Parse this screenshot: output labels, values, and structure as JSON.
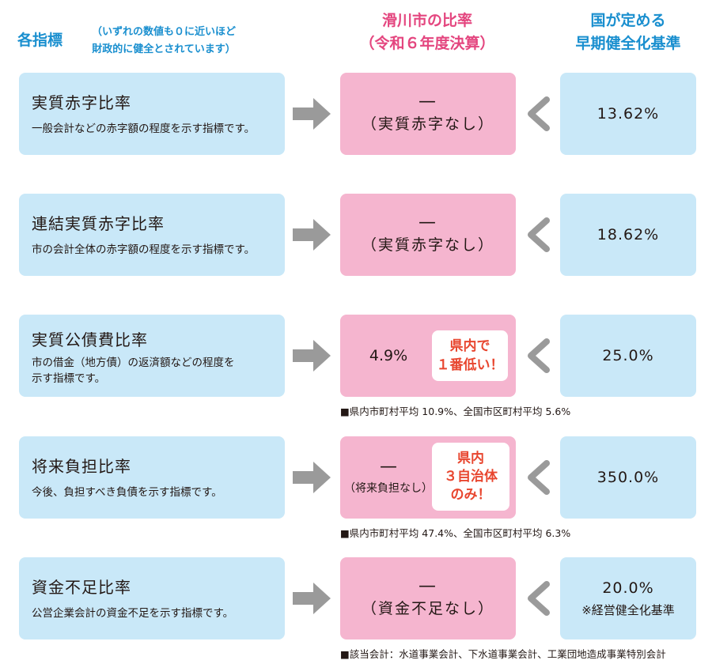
{
  "header": {
    "indicators_title": "各指標",
    "indicators_note": "（いずれの数値も０に近いほど\n財政的に健全とされています）",
    "city_ratio_title": "滑川市の比率\n（令和６年度決算）",
    "national_standard_title": "国が定める\n早期健全化基準"
  },
  "rows": [
    {
      "name": "実質赤字比率",
      "description": "一般会計などの赤字額の程度を示す指標です。",
      "city_dash": "—",
      "city_sub": "（実質赤字なし）",
      "standard": "13.62%"
    },
    {
      "name": "連結実質赤字比率",
      "description": "市の会計全体の赤字額の程度を示す指標です。",
      "city_dash": "—",
      "city_sub": "（実質赤字なし）",
      "standard": "18.62%"
    },
    {
      "name": "実質公債費比率",
      "description": "市の借金（地方債）の返済額などの程度を\n示す指標です。",
      "city_value": "4.9%",
      "badge": "県内で\n１番低い！",
      "standard": "25.0%",
      "footnote": "■県内市町村平均 10.9%、全国市区町村平均 5.6%"
    },
    {
      "name": "将来負担比率",
      "description": "今後、負担すべき負債を示す指標です。",
      "city_dash": "—",
      "city_sub": "（将来負担なし）",
      "badge": "県内\n３自治体\nのみ！",
      "standard": "350.0%",
      "footnote": "■県内市町村平均 47.4%、全国市区町村平均 6.3%"
    },
    {
      "name": "資金不足比率",
      "description": "公営企業会計の資金不足を示す指標です。",
      "city_dash": "—",
      "city_sub": "（資金不足なし）",
      "standard": "20.0%",
      "standard_note": "※経営健全化基準",
      "footnote": "■該当会計：水道事業会計、下水道事業会計、工業団地造成事業特別会計"
    }
  ],
  "colors": {
    "accent_blue": "#1a8fcf",
    "accent_pink": "#e4467f",
    "badge_red": "#e8462f",
    "box_blue": "#c9e8f8",
    "box_pink": "#f5b5cf",
    "arrow_gray": "#9a9a9a"
  },
  "icons": {
    "arrow": "arrow-right-icon",
    "less_than": "chevron-left-icon"
  }
}
